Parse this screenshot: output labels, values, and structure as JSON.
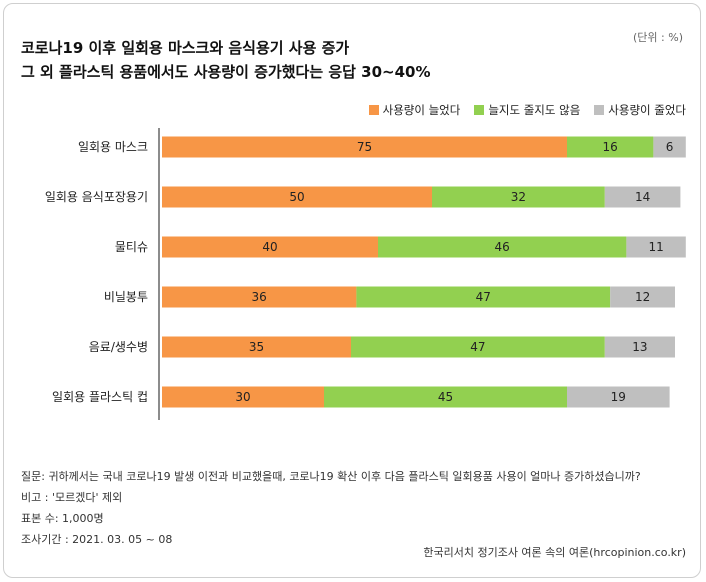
{
  "unit_label": "(단위 : %)",
  "title_line1": "코로나19 이후 일회용 마스크와 음식용기 사용 증가",
  "title_line2": "그 외 플라스틱 용품에서도 사용량이 증가했다는 응답 30~40%",
  "footer": {
    "question": "질문: 귀하께서는 국내 코로나19 발생 이전과 비교했을때, 코로나19 확산 이후 다음 플라스틱 일회용품 사용이 얼마나   증가하셨습니까?",
    "note": "비고 : '모르겠다' 제외",
    "sample": "표본 수: 1,000명",
    "period": "조사기간 : 2021. 03. 05 ~ 08"
  },
  "source": "한국리서치 정기조사 여론 속의 여론(hrcopinion.co.kr)",
  "chart_data": {
    "type": "bar",
    "orientation": "horizontal",
    "stacked": true,
    "categories": [
      "일회용 마스크",
      "일회용 음식포장용기",
      "물티슈",
      "비닐봉투",
      "음료/생수병",
      "일회용 플라스틱 컵"
    ],
    "series": [
      {
        "name": "사용량이 늘었다",
        "color": "#F79646",
        "values": [
          75,
          50,
          40,
          36,
          35,
          30
        ]
      },
      {
        "name": "늘지도 줄지도 않음",
        "color": "#92D050",
        "values": [
          16,
          32,
          46,
          47,
          47,
          45
        ]
      },
      {
        "name": "사용량이 줄었다",
        "color": "#BFBFBF",
        "values": [
          6,
          14,
          11,
          12,
          13,
          19
        ]
      }
    ],
    "xlim": [
      0,
      97
    ],
    "legend_position": "top-right",
    "grid": false
  }
}
